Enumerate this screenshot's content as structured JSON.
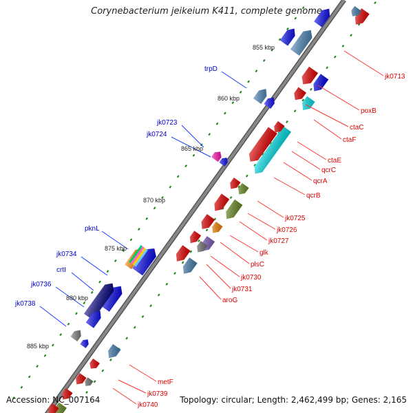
{
  "title": "Corynebacterium jeikeium K411, complete genome",
  "accession_label": "Accession: NC_007164",
  "summary_label": "Topology: circular; Length: 2,462,499 bp; Genes: 2,165",
  "scale_labels": [
    "855 kbp",
    "860 kbp",
    "865 kbp",
    "870 kbp",
    "875 kbp",
    "880 kbp",
    "885 kbp"
  ],
  "genes_reverse": [
    "trpD",
    "jk0723",
    "jk0724",
    "pknL",
    "jk0734",
    "crtI",
    "jk0736",
    "jk0738"
  ],
  "genes_forward": [
    "jk0713",
    "poxB",
    "ctaC",
    "ctaF",
    "ctaE",
    "qcrC",
    "qcrA",
    "qcrB",
    "jk0725",
    "jk0726",
    "jk0727",
    "glk",
    "plsC",
    "jk0730",
    "jk0731",
    "aroG",
    "metF",
    "jk0739",
    "jk0740"
  ],
  "colors": {
    "reverse_label": "#0000cc",
    "forward_label": "#dd0000",
    "backbone": "#888888",
    "tick": "#228b22",
    "blue_gene": "#0000ee",
    "steel_gene": "#4682b4",
    "red_gene": "#ee0000",
    "cyan_gene": "#00e5ee",
    "olive_gene": "#6b8e23",
    "navy_gene": "#000080",
    "magenta_gene": "#ff00aa",
    "grey_gene": "#777777",
    "violet_gene": "#8060c0",
    "orange_gene": "#ff8800"
  }
}
